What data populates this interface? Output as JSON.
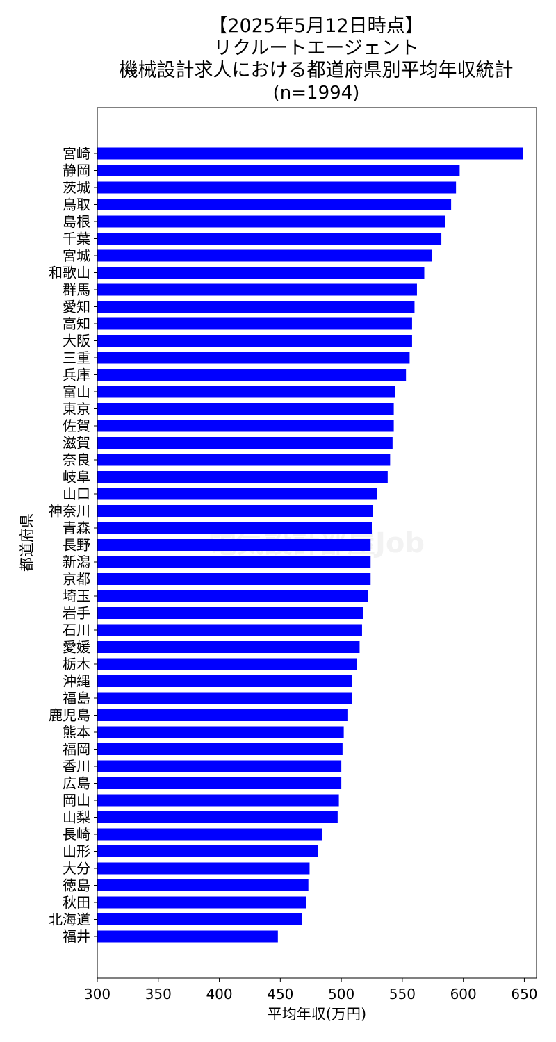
{
  "chart_data": {
    "type": "bar",
    "orientation": "horizontal",
    "title_lines": [
      "【2025年5月12日時点】",
      "リクルートエージェント",
      "機械設計求人における都道府県別平均年収統計",
      "(n=1994)"
    ],
    "xlabel": "平均年収(万円)",
    "ylabel": "都道府県",
    "xlim": [
      300,
      660
    ],
    "xticks": [
      300,
      350,
      400,
      450,
      500,
      550,
      600,
      650
    ],
    "bar_color": "#0000ff",
    "grid": false,
    "watermark": "電気設計部屋Job",
    "categories": [
      "宮崎",
      "静岡",
      "茨城",
      "鳥取",
      "島根",
      "千葉",
      "宮城",
      "和歌山",
      "群馬",
      "愛知",
      "高知",
      "大阪",
      "三重",
      "兵庫",
      "富山",
      "東京",
      "佐賀",
      "滋賀",
      "奈良",
      "岐阜",
      "山口",
      "神奈川",
      "青森",
      "長野",
      "新潟",
      "京都",
      "埼玉",
      "岩手",
      "石川",
      "愛媛",
      "栃木",
      "沖縄",
      "福島",
      "鹿児島",
      "熊本",
      "福岡",
      "香川",
      "広島",
      "岡山",
      "山梨",
      "長崎",
      "山形",
      "大分",
      "徳島",
      "秋田",
      "北海道",
      "福井"
    ],
    "values": [
      649,
      597,
      594,
      590,
      585,
      582,
      574,
      568,
      562,
      560,
      558,
      558,
      556,
      553,
      544,
      543,
      543,
      542,
      540,
      538,
      529,
      526,
      525,
      524,
      524,
      524,
      522,
      518,
      517,
      515,
      513,
      509,
      509,
      505,
      502,
      501,
      500,
      500,
      498,
      497,
      484,
      481,
      474,
      473,
      471,
      468,
      448
    ]
  }
}
